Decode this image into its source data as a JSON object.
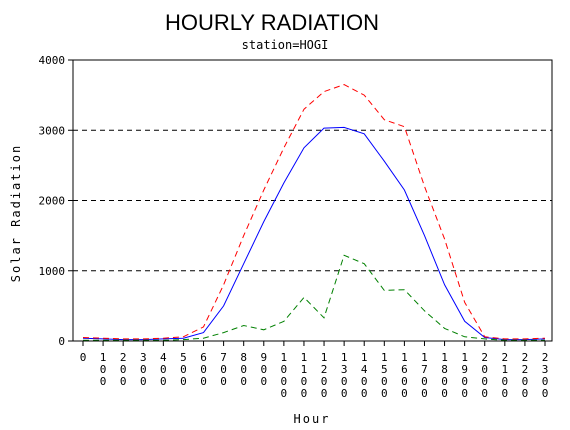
{
  "chart_data": {
    "type": "line",
    "title": "HOURLY RADIATION",
    "subtitle": "station=HOGI",
    "xlabel": "Hour",
    "ylabel": "Solar Radiation",
    "x": [
      "0",
      "100",
      "200",
      "300",
      "400",
      "500",
      "600",
      "700",
      "800",
      "900",
      "1000",
      "1100",
      "1200",
      "1300",
      "1400",
      "1500",
      "1600",
      "1700",
      "1800",
      "1900",
      "2000",
      "2100",
      "2200",
      "2300"
    ],
    "ylim": [
      0,
      4000
    ],
    "yticks": [
      0,
      1000,
      2000,
      3000,
      4000
    ],
    "grid": "horizontal-dashed",
    "series": [
      {
        "color": "#0000ff",
        "style": "solid",
        "values": [
          40,
          30,
          20,
          20,
          30,
          40,
          120,
          500,
          1100,
          1700,
          2250,
          2750,
          3030,
          3040,
          2950,
          2560,
          2150,
          1500,
          800,
          280,
          50,
          20,
          20,
          30
        ]
      },
      {
        "color": "#ff0000",
        "style": "dashed",
        "values": [
          50,
          40,
          30,
          30,
          40,
          60,
          200,
          800,
          1500,
          2150,
          2750,
          3300,
          3550,
          3650,
          3500,
          3150,
          3050,
          2200,
          1450,
          550,
          60,
          30,
          30,
          40
        ]
      },
      {
        "color": "#008000",
        "style": "dashed",
        "values": [
          10,
          10,
          10,
          10,
          10,
          20,
          40,
          120,
          220,
          160,
          280,
          620,
          330,
          1220,
          1100,
          720,
          730,
          430,
          180,
          60,
          30,
          10,
          10,
          10
        ]
      }
    ]
  }
}
